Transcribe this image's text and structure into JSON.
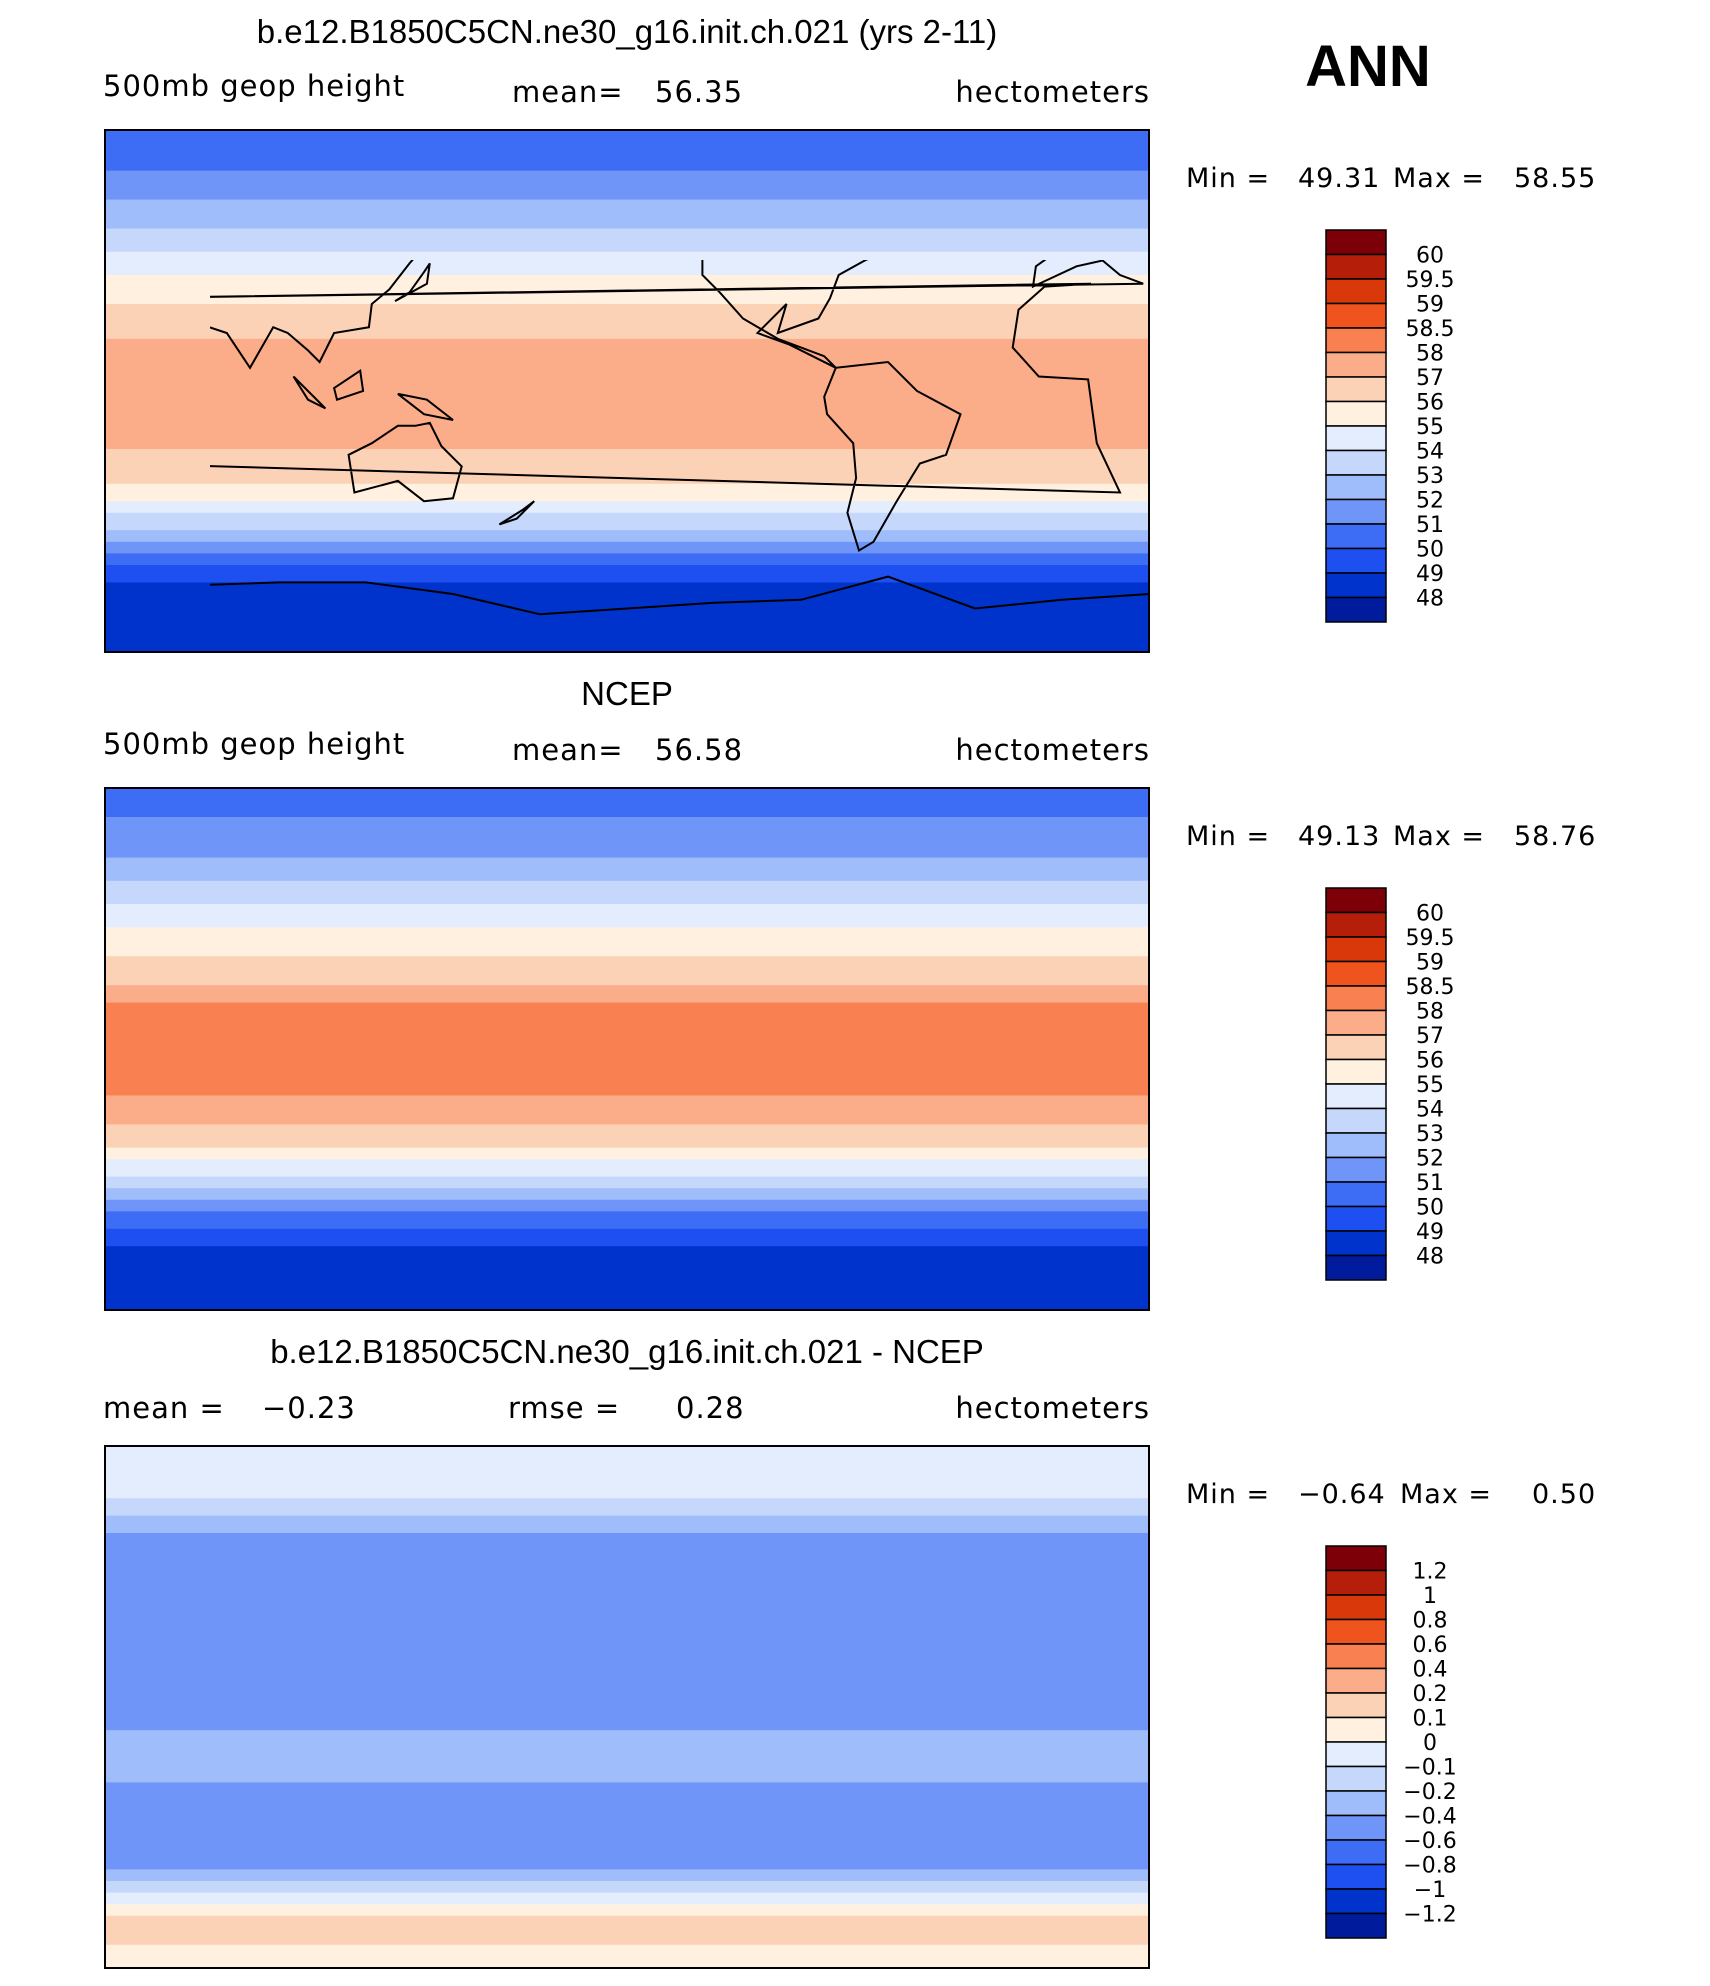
{
  "figure": {
    "season": "ANN",
    "colors": {
      "abs_scale": [
        "#000080",
        "#001c9c",
        "#0033cc",
        "#1e4ff0",
        "#3d6cf5",
        "#6f95f8",
        "#a0bdfb",
        "#c5d8fc",
        "#e3edfe",
        "#fff0e0",
        "#fcd2b6",
        "#fbac88",
        "#f98050",
        "#f0541e",
        "#d9380a",
        "#b51e08",
        "#7d0008"
      ],
      "diff_scale": [
        "#000080",
        "#001c9c",
        "#0033cc",
        "#1e4ff0",
        "#3d6cf5",
        "#6f95f8",
        "#a0bdfb",
        "#c5d8fc",
        "#e3edfe",
        "#fff0e0",
        "#fcd2b6",
        "#fbac88",
        "#f98050",
        "#f0541e",
        "#d9380a",
        "#b51e08",
        "#7d0008"
      ]
    }
  },
  "chart_data": [
    {
      "type": "heatmap",
      "title": "b.e12.B1850C5CN.ne30_g16.init.ch.021 (yrs 2-11)",
      "variable_label": "500mb  geop  height",
      "mean_label": "mean=",
      "mean_value": "56.35",
      "units": "hectometers",
      "min_label": "Min =",
      "min_value": "49.31",
      "max_label": "Max =",
      "max_value": "58.55",
      "min": 49.31,
      "max": 58.55,
      "colorbar_levels": [
        "60",
        "59.5",
        "59",
        "58.5",
        "58",
        "57",
        "56",
        "55",
        "54",
        "53",
        "52",
        "51",
        "50",
        "49",
        "48"
      ],
      "zonal_profile": [
        {
          "lat": -90,
          "v": 49.0
        },
        {
          "lat": -70,
          "v": 49.5
        },
        {
          "lat": -60,
          "v": 51.0
        },
        {
          "lat": -45,
          "v": 54.5
        },
        {
          "lat": -30,
          "v": 57.5
        },
        {
          "lat": -15,
          "v": 58.2
        },
        {
          "lat": 0,
          "v": 58.3
        },
        {
          "lat": 15,
          "v": 58.3
        },
        {
          "lat": 30,
          "v": 57.0
        },
        {
          "lat": 45,
          "v": 55.5
        },
        {
          "lat": 60,
          "v": 53.5
        },
        {
          "lat": 75,
          "v": 52.0
        },
        {
          "lat": 90,
          "v": 51.5
        }
      ]
    },
    {
      "type": "heatmap",
      "title": "NCEP",
      "variable_label": "500mb  geop  height",
      "mean_label": "mean=",
      "mean_value": "56.58",
      "units": "hectometers",
      "min_label": "Min =",
      "min_value": "49.13",
      "max_label": "Max =",
      "max_value": "58.76",
      "min": 49.13,
      "max": 58.76,
      "colorbar_levels": [
        "60",
        "59.5",
        "59",
        "58.5",
        "58",
        "57",
        "56",
        "55",
        "54",
        "53",
        "52",
        "51",
        "50",
        "49",
        "48"
      ],
      "zonal_profile": [
        {
          "lat": -90,
          "v": 49.0
        },
        {
          "lat": -70,
          "v": 49.6
        },
        {
          "lat": -60,
          "v": 51.2
        },
        {
          "lat": -45,
          "v": 54.6
        },
        {
          "lat": -30,
          "v": 57.8
        },
        {
          "lat": -15,
          "v": 58.6
        },
        {
          "lat": 0,
          "v": 58.7
        },
        {
          "lat": 15,
          "v": 58.6
        },
        {
          "lat": 30,
          "v": 57.2
        },
        {
          "lat": 45,
          "v": 55.6
        },
        {
          "lat": 60,
          "v": 53.6
        },
        {
          "lat": 75,
          "v": 52.2
        },
        {
          "lat": 90,
          "v": 51.6
        }
      ]
    },
    {
      "type": "heatmap",
      "title": "b.e12.B1850C5CN.ne30_g16.init.ch.021 - NCEP",
      "variable_label": "mean =",
      "mean_label": "",
      "mean_value": "−0.23",
      "rmse_label": "rmse =",
      "rmse_value": "0.28",
      "units": "hectometers",
      "min_label": "Min =",
      "min_value": "−0.64",
      "max_label": "Max =",
      "max_value": "0.50",
      "min": -0.64,
      "max": 0.5,
      "colorbar_levels": [
        "1.2",
        "1",
        "0.8",
        "0.6",
        "0.4",
        "0.2",
        "0.1",
        "0",
        "−0.1",
        "−0.2",
        "−0.4",
        "−0.6",
        "−0.8",
        "−1",
        "−1.2"
      ],
      "zonal_profile": [
        {
          "lat": -90,
          "v": 0.15
        },
        {
          "lat": -75,
          "v": 0.25
        },
        {
          "lat": -65,
          "v": 0.05
        },
        {
          "lat": -50,
          "v": -0.35
        },
        {
          "lat": -35,
          "v": -0.25
        },
        {
          "lat": -15,
          "v": -0.15
        },
        {
          "lat": 0,
          "v": -0.25
        },
        {
          "lat": 15,
          "v": -0.3
        },
        {
          "lat": 30,
          "v": -0.35
        },
        {
          "lat": 45,
          "v": -0.25
        },
        {
          "lat": 60,
          "v": -0.2
        },
        {
          "lat": 75,
          "v": 0.05
        },
        {
          "lat": 90,
          "v": 0.1
        }
      ]
    }
  ]
}
